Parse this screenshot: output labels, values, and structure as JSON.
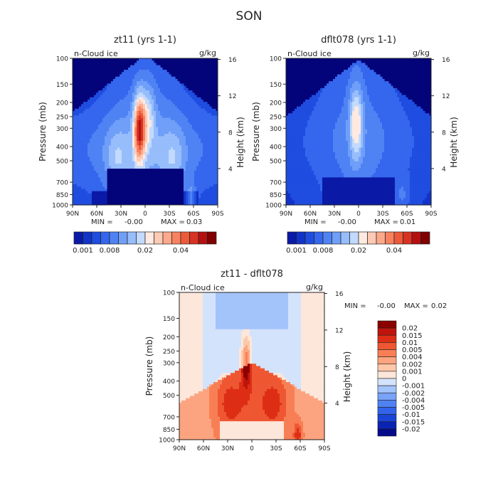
{
  "figure_title": "SON",
  "chart_data": [
    {
      "type": "heatmap",
      "id": "p1",
      "title": "zt11 (yrs 1-1)",
      "variable_label": "n-Cloud ice",
      "units": "g/kg",
      "xlabel": "",
      "ylabel": "Pressure (mb)",
      "y2label": "Height (km)",
      "x_ticks": [
        "90N",
        "60N",
        "30N",
        "0",
        "30S",
        "60S",
        "90S"
      ],
      "y_ticks": [
        "100",
        "150",
        "200",
        "250",
        "300",
        "400",
        "500",
        "700",
        "850",
        "1000"
      ],
      "y2_ticks": [
        "16",
        "12",
        "8",
        "4"
      ],
      "min_label": "MIN =",
      "min_value": "-0.00",
      "max_label": "MAX =",
      "max_value": "0.03",
      "colorbar_labels": [
        "0.001",
        "0.008",
        "0.02",
        "0.04"
      ],
      "colors": [
        "#03037a",
        "#0a1aa6",
        "#1233c8",
        "#1f4de0",
        "#3566ee",
        "#4f83f4",
        "#6f9ff8",
        "#97bdfb",
        "#c2dafd",
        "#ffe9e0",
        "#fdcbb5",
        "#fca98b",
        "#f8825f",
        "#ec5a3a",
        "#d83322",
        "#b51010",
        "#800000"
      ]
    },
    {
      "type": "heatmap",
      "id": "p2",
      "title": "dflt078 (yrs 1-1)",
      "variable_label": "n-Cloud ice",
      "units": "g/kg",
      "xlabel": "",
      "ylabel": "Pressure (mb)",
      "y2label": "Height (km)",
      "x_ticks": [
        "90N",
        "60N",
        "30N",
        "0",
        "30S",
        "60S",
        "90S"
      ],
      "y_ticks": [
        "100",
        "150",
        "200",
        "250",
        "300",
        "400",
        "500",
        "700",
        "850",
        "1000"
      ],
      "y2_ticks": [
        "16",
        "12",
        "8",
        "4"
      ],
      "min_label": "MIN =",
      "min_value": "-0.00",
      "max_label": "MAX =",
      "max_value": "0.01",
      "colorbar_labels": [
        "0.001",
        "0.008",
        "0.02",
        "0.04"
      ],
      "colors": [
        "#03037a",
        "#0a1aa6",
        "#1233c8",
        "#1f4de0",
        "#3566ee",
        "#4f83f4",
        "#6f9ff8",
        "#97bdfb",
        "#c2dafd",
        "#ffe9e0",
        "#fdcbb5",
        "#fca98b",
        "#f8825f",
        "#ec5a3a",
        "#d83322",
        "#b51010",
        "#800000"
      ]
    },
    {
      "type": "heatmap",
      "id": "p3",
      "title": "zt11 - dflt078",
      "variable_label": "n-Cloud ice",
      "units": "g/kg",
      "xlabel": "",
      "ylabel": "Pressure (mb)",
      "y2label": "Height (km)",
      "x_ticks": [
        "90N",
        "60N",
        "30N",
        "0",
        "30S",
        "60S",
        "90S"
      ],
      "y_ticks": [
        "100",
        "150",
        "200",
        "250",
        "300",
        "400",
        "500",
        "700",
        "850",
        "1000"
      ],
      "y2_ticks": [
        "16",
        "12",
        "8",
        "4"
      ],
      "min_label": "MIN =",
      "min_value": "-0.00",
      "max_label": "MAX =",
      "max_value": "0.02",
      "legend_levels": [
        "0.02",
        "0.015",
        "0.01",
        "0.005",
        "0.004",
        "0.002",
        "0.001",
        "0",
        "-0.001",
        "-0.002",
        "-0.004",
        "-0.005",
        "-0.01",
        "-0.015",
        "-0.02"
      ],
      "colors": [
        "#050a8a",
        "#0b23b3",
        "#1b45d6",
        "#3263ea",
        "#4f82f3",
        "#79a3f8",
        "#a3c3fb",
        "#d3e3fc",
        "#fde6da",
        "#fcc8a9",
        "#fca47f",
        "#f87f55",
        "#ee5732",
        "#dd2e15",
        "#be140d",
        "#8a0000"
      ]
    }
  ]
}
